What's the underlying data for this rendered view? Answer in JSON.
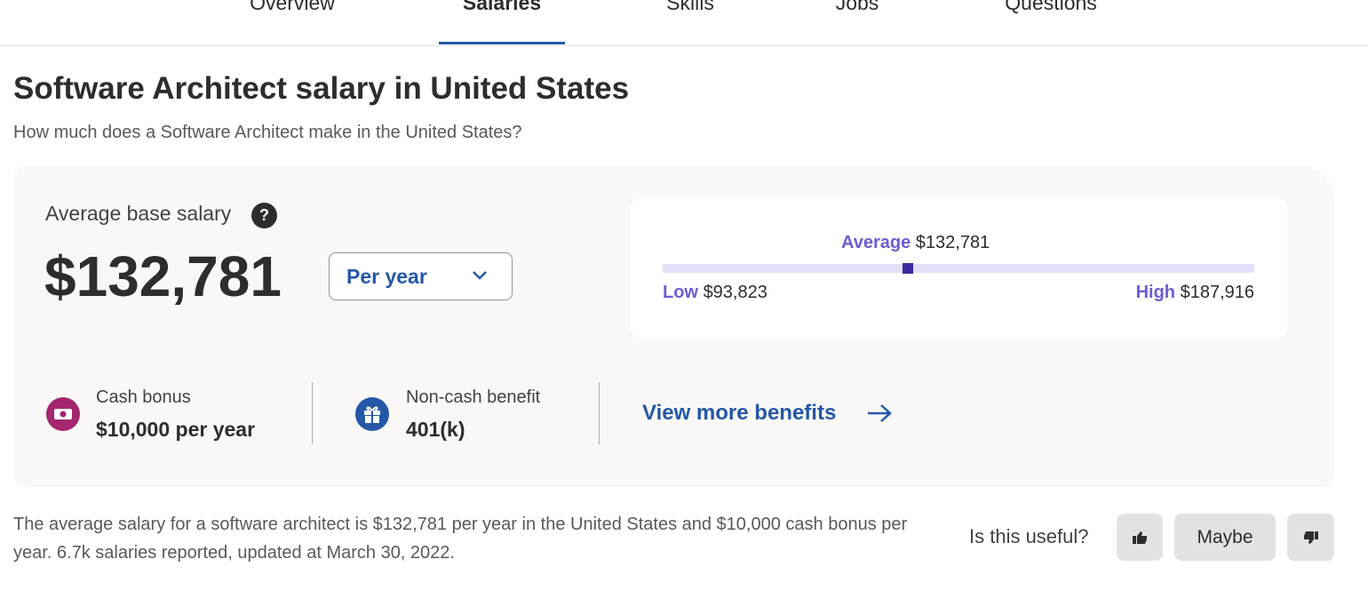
{
  "tabs": [
    "Overview",
    "Salaries",
    "Skills",
    "Jobs",
    "Questions"
  ],
  "header": {
    "title": "Software Architect salary in United States",
    "subtitle": "How much does a Software Architect make in the United States?"
  },
  "salary": {
    "label": "Average base salary",
    "help_icon": "?",
    "amount": "$132,781",
    "period": "Per year"
  },
  "salary_range": {
    "average": {
      "label": "Average",
      "value": 132781,
      "value_label": "$132,781"
    },
    "low": {
      "label": "Low",
      "value": 93823,
      "value_label": "$93,823"
    },
    "high": {
      "label": "High",
      "value": 187916,
      "value_label": "$187,916"
    }
  },
  "benefits": [
    {
      "label": "Cash bonus",
      "value": "$10,000 per year"
    },
    {
      "label": "Non-cash benefit",
      "value": "401(k)"
    }
  ],
  "more_link": "View more benefits",
  "footer": {
    "summary": "The average salary for a software architect is $132,781 per year in the United States and $10,000 cash bonus per year. 6.7k salaries reported, updated at March 30, 2022.",
    "feedback": {
      "question": "Is this useful?",
      "buttons": [
        "Maybe"
      ]
    }
  }
}
